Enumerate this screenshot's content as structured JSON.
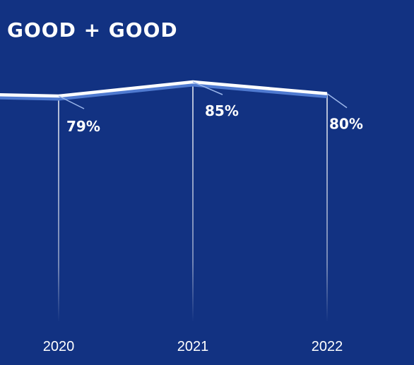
{
  "chart_data": {
    "type": "line",
    "title": "GOOD + GOOD",
    "categories": [
      "2020",
      "2021",
      "2022"
    ],
    "series": [
      {
        "values": [
          79,
          85,
          80
        ]
      }
    ],
    "data_labels": [
      "79%",
      "85%",
      "80%"
    ],
    "grid": false,
    "ylim": [
      0,
      100
    ],
    "colors": {
      "background": "#123282",
      "line": "#ffffff",
      "line_shadow": "#4f7ad0",
      "leader": "#9bb6ea",
      "text": "#ffffff"
    }
  }
}
